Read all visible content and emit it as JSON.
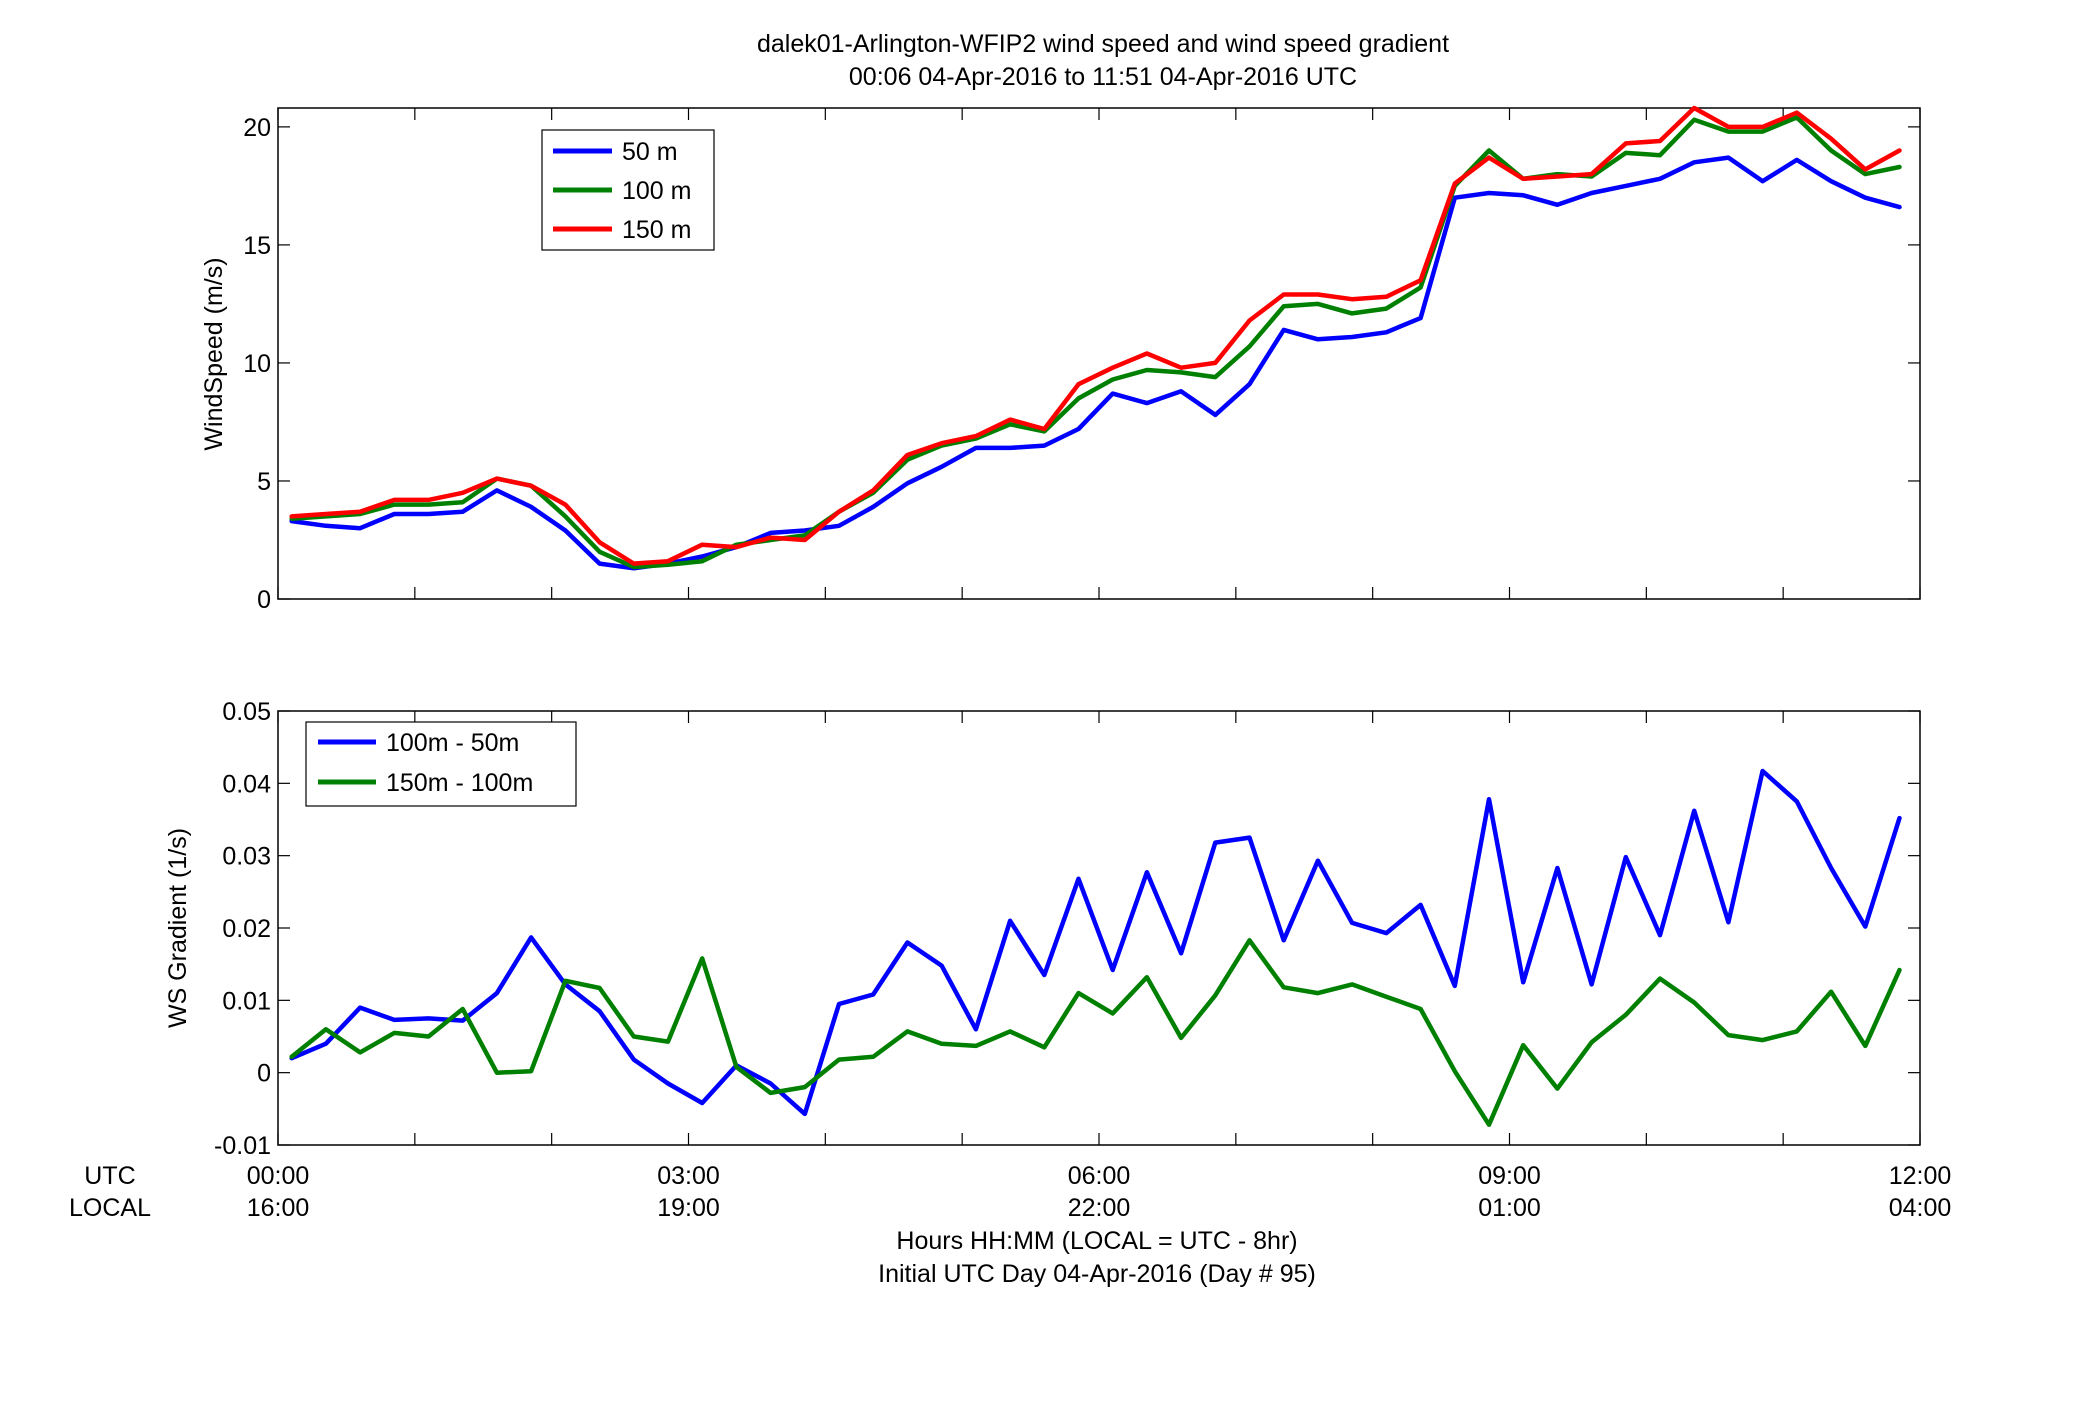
{
  "figure": {
    "title_line1": "dalek01-Arlington-WFIP2  wind speed and wind speed gradient",
    "title_line2": "00:06 04-Apr-2016 to 11:51 04-Apr-2016  UTC",
    "xlabel_line1": "Hours HH:MM  (LOCAL = UTC - 8hr)",
    "xlabel_line2": "Initial UTC Day 04-Apr-2016 (Day # 95)",
    "utc_row_label": "UTC",
    "local_row_label": "LOCAL"
  },
  "chart_data": [
    {
      "type": "line",
      "ylabel": "WindSpeed (m/s)",
      "xlim": [
        0,
        12
      ],
      "ylim": [
        0,
        20.8
      ],
      "yticks": [
        0,
        5,
        10,
        15,
        20
      ],
      "ytick_labels": [
        "0",
        "5",
        "10",
        "15",
        "20"
      ],
      "grid": false,
      "legend_position": "top-left",
      "x": [
        0.1,
        0.35,
        0.6,
        0.85,
        1.1,
        1.35,
        1.6,
        1.85,
        2.1,
        2.35,
        2.6,
        2.85,
        3.1,
        3.35,
        3.6,
        3.85,
        4.1,
        4.35,
        4.6,
        4.85,
        5.1,
        5.35,
        5.6,
        5.85,
        6.1,
        6.35,
        6.6,
        6.85,
        7.1,
        7.35,
        7.6,
        7.85,
        8.1,
        8.35,
        8.6,
        8.85,
        9.1,
        9.35,
        9.6,
        9.85,
        10.1,
        10.35,
        10.6,
        10.85,
        11.1,
        11.35,
        11.6,
        11.85
      ],
      "series": [
        {
          "name": "50 m",
          "color": "#0000ff",
          "values": [
            3.3,
            3.1,
            3.0,
            3.6,
            3.6,
            3.7,
            4.6,
            3.9,
            2.9,
            1.5,
            1.3,
            1.5,
            1.8,
            2.2,
            2.8,
            2.9,
            3.1,
            3.9,
            4.9,
            5.6,
            6.4,
            6.4,
            6.5,
            7.2,
            8.7,
            8.3,
            8.8,
            7.8,
            9.1,
            11.4,
            11.0,
            11.1,
            11.3,
            11.9,
            17.0,
            17.2,
            17.1,
            16.7,
            17.2,
            17.5,
            17.8,
            18.5,
            18.7,
            17.7,
            18.6,
            17.7,
            17.0,
            16.6
          ]
        },
        {
          "name": "100 m",
          "color": "#008000",
          "values": [
            3.4,
            3.5,
            3.6,
            4.0,
            4.0,
            4.1,
            5.1,
            4.8,
            3.5,
            2.0,
            1.35,
            1.45,
            1.6,
            2.3,
            2.5,
            2.7,
            3.7,
            4.5,
            5.9,
            6.5,
            6.8,
            7.4,
            7.1,
            8.5,
            9.3,
            9.7,
            9.6,
            9.4,
            10.7,
            12.4,
            12.5,
            12.1,
            12.3,
            13.2,
            17.5,
            19.0,
            17.8,
            18.0,
            17.9,
            18.9,
            18.8,
            20.3,
            19.8,
            19.8,
            20.4,
            19.0,
            18.0,
            18.3
          ]
        },
        {
          "name": "150 m",
          "color": "#ff0000",
          "values": [
            3.5,
            3.6,
            3.7,
            4.2,
            4.2,
            4.5,
            5.1,
            4.8,
            4.0,
            2.4,
            1.5,
            1.6,
            2.3,
            2.2,
            2.6,
            2.5,
            3.7,
            4.6,
            6.1,
            6.6,
            6.9,
            7.6,
            7.2,
            9.1,
            9.8,
            10.4,
            9.8,
            10.0,
            11.8,
            12.9,
            12.9,
            12.7,
            12.8,
            13.5,
            17.6,
            18.7,
            17.8,
            17.9,
            18.0,
            19.3,
            19.4,
            20.8,
            20.0,
            20.0,
            20.6,
            19.5,
            18.2,
            19.0
          ]
        }
      ]
    },
    {
      "type": "line",
      "ylabel": "WS Gradient (1/s)",
      "xlim": [
        0,
        12
      ],
      "ylim": [
        -0.01,
        0.05
      ],
      "yticks": [
        -0.01,
        0,
        0.01,
        0.02,
        0.03,
        0.04,
        0.05
      ],
      "ytick_labels": [
        "-0.01",
        "0",
        "0.01",
        "0.02",
        "0.03",
        "0.04",
        "0.05"
      ],
      "xticks": [
        0,
        3,
        6,
        9,
        12
      ],
      "xtick_labels_utc": [
        "00:00",
        "03:00",
        "06:00",
        "09:00",
        "12:00"
      ],
      "xtick_labels_local": [
        "16:00",
        "19:00",
        "22:00",
        "01:00",
        "04:00"
      ],
      "grid": false,
      "legend_position": "top-left",
      "x": [
        0.1,
        0.35,
        0.6,
        0.85,
        1.1,
        1.35,
        1.6,
        1.85,
        2.1,
        2.35,
        2.6,
        2.85,
        3.1,
        3.35,
        3.6,
        3.85,
        4.1,
        4.35,
        4.6,
        4.85,
        5.1,
        5.35,
        5.6,
        5.85,
        6.1,
        6.35,
        6.6,
        6.85,
        7.1,
        7.35,
        7.6,
        7.85,
        8.1,
        8.35,
        8.6,
        8.85,
        9.1,
        9.35,
        9.6,
        9.85,
        10.1,
        10.35,
        10.6,
        10.85,
        11.1,
        11.35,
        11.6,
        11.85
      ],
      "series": [
        {
          "name": "100m - 50m",
          "color": "#0000ff",
          "values": [
            0.002,
            0.004,
            0.009,
            0.0073,
            0.0075,
            0.0072,
            0.011,
            0.0187,
            0.0122,
            0.0085,
            0.0018,
            -0.0015,
            -0.0042,
            0.001,
            -0.0015,
            -0.0057,
            0.0095,
            0.0108,
            0.018,
            0.0148,
            0.006,
            0.021,
            0.0135,
            0.0268,
            0.0142,
            0.0277,
            0.0165,
            0.0318,
            0.0325,
            0.0183,
            0.0293,
            0.0207,
            0.0193,
            0.0232,
            0.012,
            0.0378,
            0.0125,
            0.0283,
            0.0122,
            0.0298,
            0.019,
            0.0362,
            0.0208,
            0.0417,
            0.0375,
            0.0283,
            0.0202,
            0.0352
          ]
        },
        {
          "name": "150m - 100m",
          "color": "#008000",
          "values": [
            0.0022,
            0.006,
            0.0028,
            0.0055,
            0.005,
            0.0088,
            0.0,
            0.0002,
            0.0127,
            0.0117,
            0.005,
            0.0043,
            0.0158,
            0.0008,
            -0.0028,
            -0.002,
            0.0018,
            0.0022,
            0.0057,
            0.004,
            0.0037,
            0.0057,
            0.0035,
            0.011,
            0.0082,
            0.0132,
            0.0048,
            0.0107,
            0.0183,
            0.0118,
            0.011,
            0.0122,
            0.0105,
            0.0088,
            0.0002,
            -0.0072,
            0.0038,
            -0.0022,
            0.0042,
            0.008,
            0.013,
            0.0097,
            0.0052,
            0.0045,
            0.0057,
            0.0112,
            0.0037,
            0.0142
          ]
        }
      ]
    }
  ]
}
